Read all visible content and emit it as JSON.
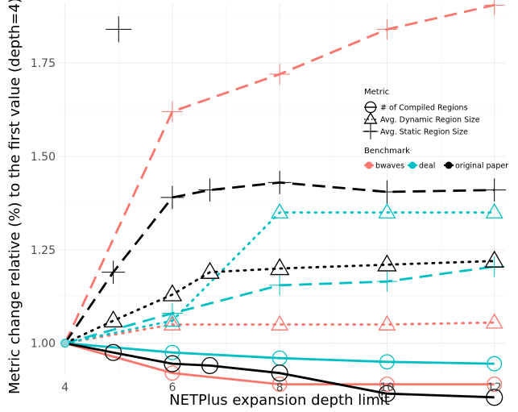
{
  "chart_data": {
    "type": "line",
    "xlabel": "NETPlus expansion depth limit",
    "ylabel": "Metric change relative (%) to the first value (depth=4)",
    "xlim": [
      3.9,
      12.2
    ],
    "ylim": [
      0.915,
      1.91
    ],
    "x_ticks": [
      4,
      6,
      8,
      10,
      12
    ],
    "x_tick_labels": [
      "4",
      "6",
      "8",
      "10",
      "12"
    ],
    "y_ticks": [
      1.0,
      1.25,
      1.5,
      1.75
    ],
    "y_tick_labels": [
      "1.00",
      "1.25",
      "1.50",
      "1.75"
    ],
    "grid": true,
    "legend_placement": "right",
    "legend": {
      "metric_title": "Metric",
      "metric_items": [
        {
          "label": "# of Compiled Regions",
          "shape": "circle",
          "linetype": "solid"
        },
        {
          "label": "Avg. Dynamic Region Size",
          "shape": "triangle",
          "linetype": "dotted"
        },
        {
          "label": "Avg. Static Region Size",
          "shape": "plus",
          "linetype": "dashed"
        }
      ],
      "benchmark_title": "Benchmark",
      "benchmark_items": [
        {
          "label": "bwaves",
          "color": "#F8766D"
        },
        {
          "label": "deal",
          "color": "#00BFC4"
        },
        {
          "label": "original paper",
          "color": "#000000"
        }
      ]
    },
    "series": [
      {
        "benchmark": "bwaves",
        "metric": "# of Compiled Regions",
        "color": "#F8766D",
        "linetype": "solid",
        "shape": "circle",
        "x": [
          4,
          6,
          8,
          10,
          12
        ],
        "y": [
          1.0,
          0.92,
          0.89,
          0.89,
          0.89
        ]
      },
      {
        "benchmark": "bwaves",
        "metric": "Avg. Dynamic Region Size",
        "color": "#F8766D",
        "linetype": "dotted",
        "shape": "triangle",
        "x": [
          4,
          6,
          8,
          10,
          12
        ],
        "y": [
          1.0,
          1.05,
          1.05,
          1.05,
          1.055
        ]
      },
      {
        "benchmark": "bwaves",
        "metric": "Avg. Static Region Size",
        "color": "#F8766D",
        "linetype": "dashed",
        "shape": "plus",
        "x": [
          4,
          6,
          8,
          10,
          12
        ],
        "y": [
          1.0,
          1.62,
          1.72,
          1.84,
          1.905
        ]
      },
      {
        "benchmark": "deal",
        "metric": "# of Compiled Regions",
        "color": "#00BFC4",
        "linetype": "solid",
        "shape": "circle",
        "x": [
          4,
          6,
          8,
          10,
          12
        ],
        "y": [
          1.0,
          0.975,
          0.96,
          0.95,
          0.945
        ]
      },
      {
        "benchmark": "deal",
        "metric": "Avg. Dynamic Region Size",
        "color": "#00BFC4",
        "linetype": "dotted",
        "shape": "triangle",
        "x": [
          4,
          6,
          8,
          10,
          12
        ],
        "y": [
          1.0,
          1.06,
          1.35,
          1.35,
          1.35
        ]
      },
      {
        "benchmark": "deal",
        "metric": "Avg. Static Region Size",
        "color": "#00BFC4",
        "linetype": "dashed",
        "shape": "plus",
        "x": [
          4,
          6,
          8,
          10,
          12
        ],
        "y": [
          1.0,
          1.08,
          1.155,
          1.165,
          1.205
        ]
      },
      {
        "benchmark": "original paper",
        "metric": "# of Compiled Regions",
        "color": "#000000",
        "linetype": "solid",
        "shape": "circle",
        "x": [
          4,
          4.9,
          6,
          6.7,
          8,
          10,
          12
        ],
        "y": [
          1.0,
          0.975,
          0.945,
          0.94,
          0.92,
          0.865,
          0.855
        ]
      },
      {
        "benchmark": "original paper",
        "metric": "Avg. Dynamic Region Size",
        "color": "#000000",
        "linetype": "dotted",
        "shape": "triangle",
        "x": [
          4,
          4.9,
          6,
          6.7,
          8,
          10,
          12
        ],
        "y": [
          1.0,
          1.06,
          1.13,
          1.19,
          1.2,
          1.21,
          1.22
        ]
      },
      {
        "benchmark": "original paper",
        "metric": "Avg. Static Region Size",
        "color": "#000000",
        "linetype": "dashed",
        "shape": "plus",
        "x": [
          4,
          4.9,
          6,
          6.7,
          8,
          10,
          12
        ],
        "y": [
          1.0,
          1.19,
          1.39,
          1.41,
          1.43,
          1.405,
          1.41
        ]
      }
    ],
    "annotations": [
      {
        "shape": "plus",
        "color": "#000000",
        "x": 5.0,
        "y": 1.84
      }
    ]
  }
}
